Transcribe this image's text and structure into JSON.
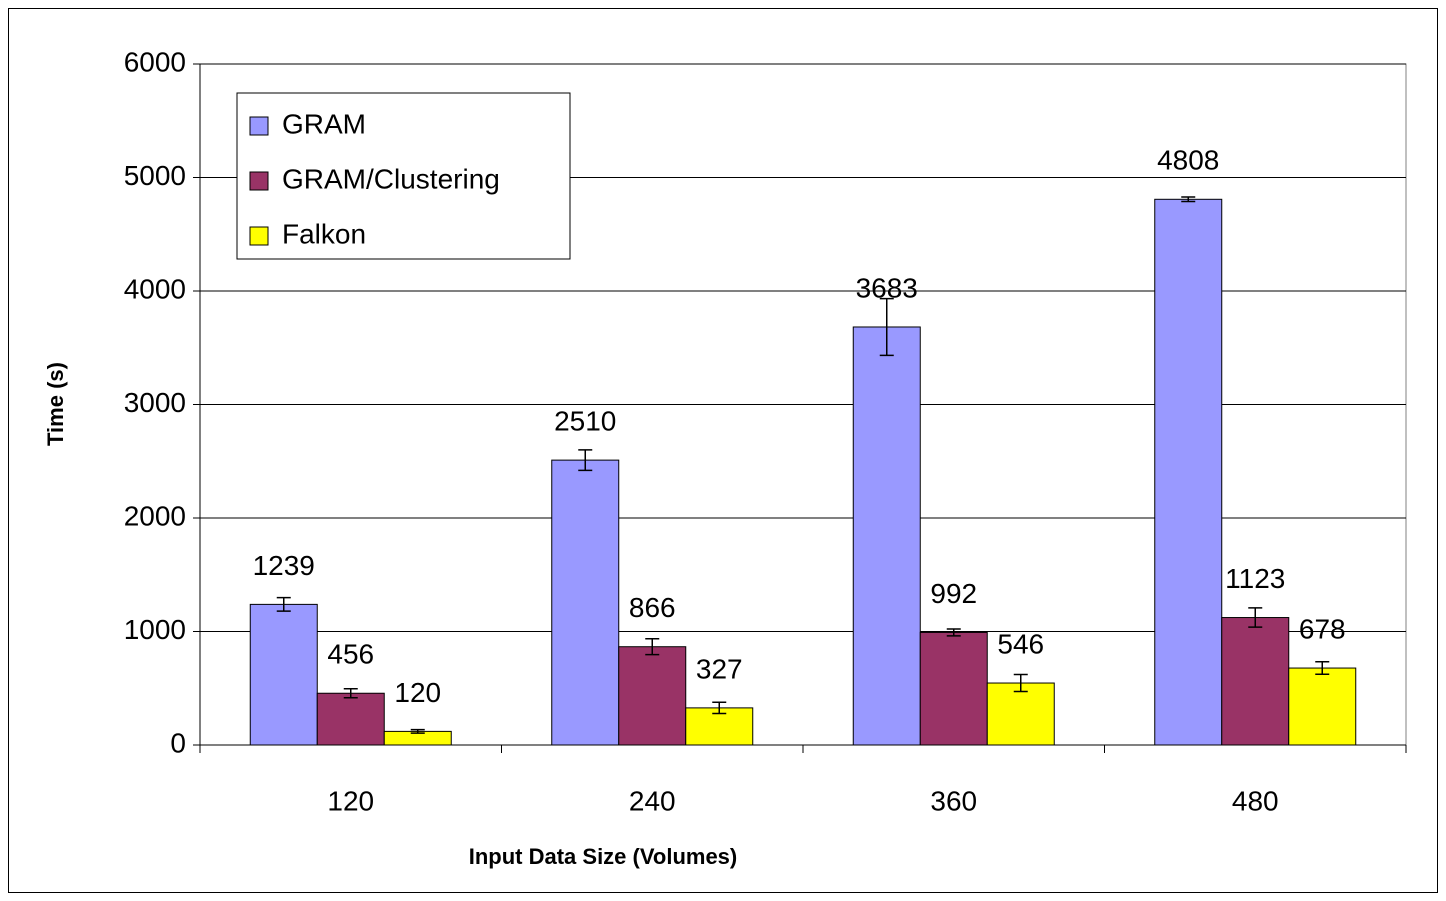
{
  "chart_data": {
    "type": "bar",
    "x_label": "Input Data Size (Volumes)",
    "y_label": "Time (s)",
    "categories": [
      "120",
      "240",
      "360",
      "480"
    ],
    "series": [
      {
        "name": "GRAM",
        "color": "#9999ff",
        "values": [
          1239,
          2510,
          3683,
          4808
        ],
        "errors": [
          60,
          90,
          250,
          20
        ]
      },
      {
        "name": "GRAM/Clustering",
        "color": "#993366",
        "values": [
          456,
          866,
          992,
          1123
        ],
        "errors": [
          40,
          70,
          30,
          85
        ]
      },
      {
        "name": "Falkon",
        "color": "#ffff00",
        "values": [
          120,
          327,
          546,
          678
        ],
        "errors": [
          15,
          50,
          75,
          55
        ]
      }
    ],
    "ylim": [
      0,
      6000
    ],
    "yticks": [
      0,
      1000,
      2000,
      3000,
      4000,
      5000,
      6000
    ],
    "grid": true,
    "legend": "upper left"
  }
}
